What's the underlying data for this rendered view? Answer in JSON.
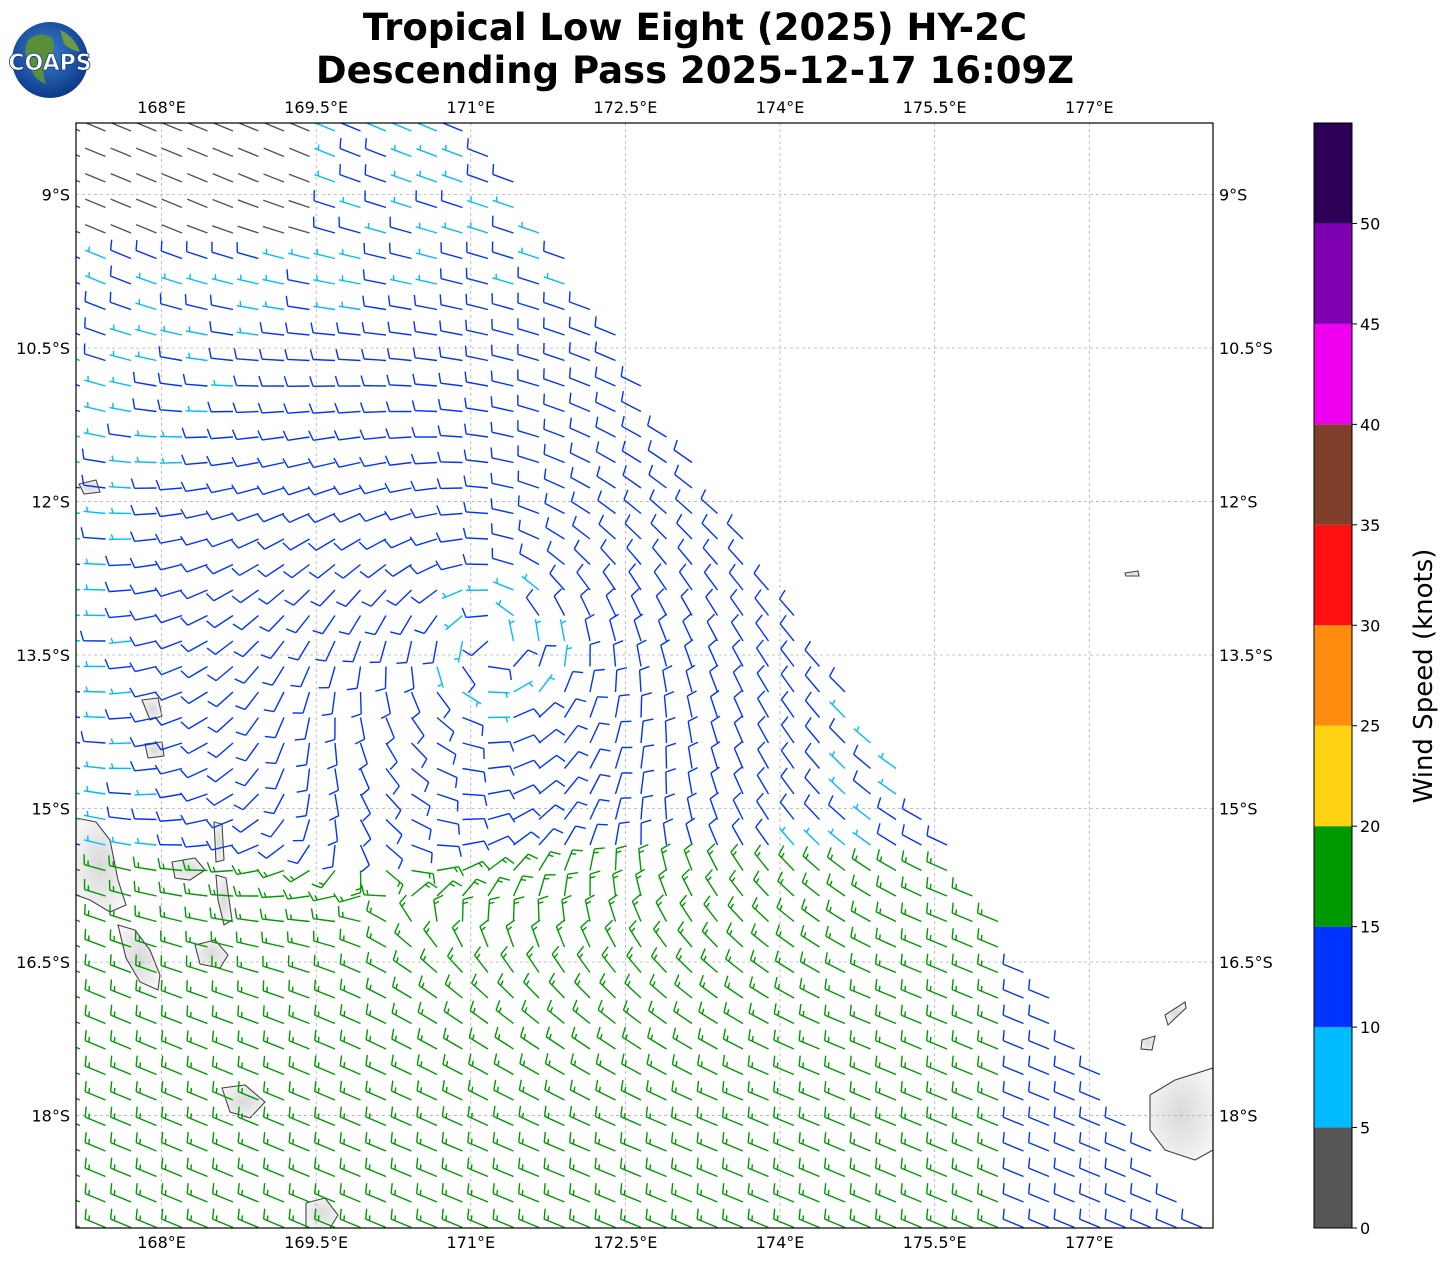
{
  "title": {
    "line1": "Tropical Low Eight (2025) HY-2C",
    "line2": "Descending Pass 2025-12-17 16:09Z"
  },
  "logo": {
    "text": "COAPS"
  },
  "map": {
    "lon_range": [
      167.17,
      178.2
    ],
    "lat_range": [
      -19.1,
      -8.3
    ],
    "lon_ticks": [
      {
        "value": 168,
        "label": "168°E"
      },
      {
        "value": 169.5,
        "label": "169.5°E"
      },
      {
        "value": 171,
        "label": "171°E"
      },
      {
        "value": 172.5,
        "label": "172.5°E"
      },
      {
        "value": 174,
        "label": "174°E"
      },
      {
        "value": 175.5,
        "label": "175.5°E"
      },
      {
        "value": 177,
        "label": "177°E"
      }
    ],
    "lat_ticks": [
      {
        "value": -9,
        "label": "9°S"
      },
      {
        "value": -10.5,
        "label": "10.5°S"
      },
      {
        "value": -12,
        "label": "12°S"
      },
      {
        "value": -13.5,
        "label": "13.5°S"
      },
      {
        "value": -15,
        "label": "15°S"
      },
      {
        "value": -16.5,
        "label": "16.5°S"
      },
      {
        "value": -18,
        "label": "18°S"
      }
    ],
    "grid": true,
    "swath_edges": [
      {
        "lon": 171.1,
        "lat": -8.3
      },
      {
        "lon": 178.2,
        "lat": -19.1
      }
    ],
    "land_color": "#ededed",
    "coast_color": "#444444"
  },
  "colorbar": {
    "label": "Wind Speed (knots)",
    "bins": [
      {
        "min": 0,
        "max": 5,
        "color": "#555555"
      },
      {
        "min": 5,
        "max": 10,
        "color": "#00bbff"
      },
      {
        "min": 10,
        "max": 15,
        "color": "#0033ff"
      },
      {
        "min": 15,
        "max": 20,
        "color": "#009900"
      },
      {
        "min": 20,
        "max": 25,
        "color": "#ffd311"
      },
      {
        "min": 25,
        "max": 30,
        "color": "#ff8c0e"
      },
      {
        "min": 30,
        "max": 35,
        "color": "#ff1111"
      },
      {
        "min": 35,
        "max": 40,
        "color": "#7f3f2a"
      },
      {
        "min": 40,
        "max": 45,
        "color": "#ee00ee"
      },
      {
        "min": 45,
        "max": 50,
        "color": "#7f00b2"
      },
      {
        "min": 50,
        "max": 55,
        "color": "#2b0055"
      }
    ],
    "tick_labels": [
      "0",
      "5",
      "10",
      "15",
      "20",
      "25",
      "30",
      "35",
      "40",
      "45",
      "50"
    ]
  },
  "wind_field": {
    "center": {
      "lon": 171.2,
      "lat": -13.4
    },
    "speed_range_knots": [
      0,
      20
    ]
  }
}
